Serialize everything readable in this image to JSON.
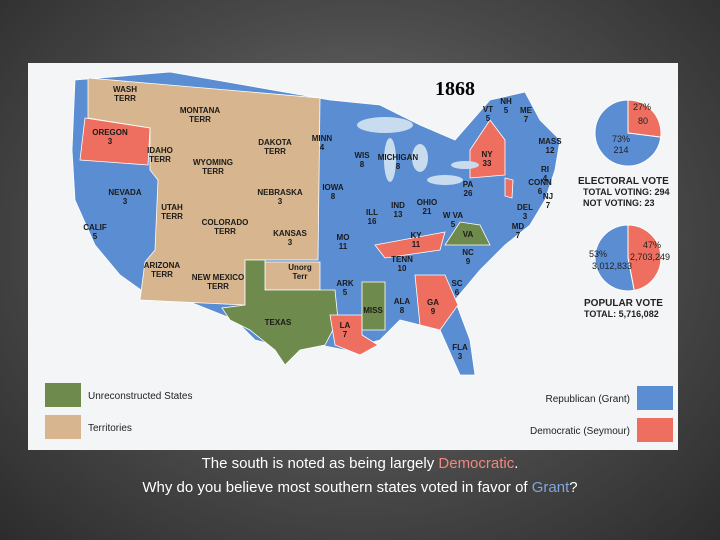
{
  "map": {
    "title": "1868",
    "states": [
      {
        "lines": [
          "WASH",
          "TERR"
        ]
      },
      {
        "lines": [
          "MONTANA",
          "TERR"
        ]
      },
      {
        "lines": [
          "IDAHO",
          "TERR"
        ]
      },
      {
        "lines": [
          "WYOMING",
          "TERR"
        ]
      },
      {
        "lines": [
          "DAKOTA",
          "TERR"
        ]
      },
      {
        "lines": [
          "UTAH",
          "TERR"
        ]
      },
      {
        "lines": [
          "COLORADO",
          "TERR"
        ]
      },
      {
        "lines": [
          "ARIZONA",
          "TERR"
        ]
      },
      {
        "lines": [
          "NEW MEXICO",
          "TERR"
        ]
      },
      {
        "lines": [
          "Unorg",
          "Terr"
        ]
      },
      {
        "lines": [
          "OREGON"
        ],
        "votes": 3
      },
      {
        "lines": [
          "NEVADA"
        ],
        "votes": 3
      },
      {
        "lines": [
          "CALIF"
        ],
        "votes": 5
      },
      {
        "lines": [
          "NEBRASKA"
        ],
        "votes": 3
      },
      {
        "lines": [
          "KANSAS"
        ],
        "votes": 3
      },
      {
        "lines": [
          "MINN"
        ],
        "votes": 4
      },
      {
        "lines": [
          "IOWA"
        ],
        "votes": 8
      },
      {
        "lines": [
          "MO"
        ],
        "votes": 11
      },
      {
        "lines": [
          "ARK"
        ],
        "votes": 5
      },
      {
        "lines": [
          "WIS"
        ],
        "votes": 8
      },
      {
        "lines": [
          "MICHIGAN"
        ],
        "votes": 8
      },
      {
        "lines": [
          "ILL"
        ],
        "votes": 16
      },
      {
        "lines": [
          "IND"
        ],
        "votes": 13
      },
      {
        "lines": [
          "OHIO"
        ],
        "votes": 21
      },
      {
        "lines": [
          "TENN"
        ],
        "votes": 10
      },
      {
        "lines": [
          "W VA"
        ],
        "votes": 5
      },
      {
        "lines": [
          "NC"
        ],
        "votes": 9
      },
      {
        "lines": [
          "SC"
        ],
        "votes": 6
      },
      {
        "lines": [
          "ALA"
        ],
        "votes": 8
      },
      {
        "lines": [
          "FLA"
        ],
        "votes": 3
      },
      {
        "lines": [
          "PA"
        ],
        "votes": 26
      },
      {
        "lines": [
          "VT"
        ],
        "votes": 5
      },
      {
        "lines": [
          "NH"
        ],
        "votes": 5
      },
      {
        "lines": [
          "ME"
        ],
        "votes": 7
      },
      {
        "lines": [
          "MASS"
        ],
        "votes": 12
      },
      {
        "lines": [
          "RI"
        ],
        "votes": 4
      },
      {
        "lines": [
          "CONN"
        ],
        "votes": 6
      },
      {
        "lines": [
          "NJ"
        ],
        "votes": 7
      },
      {
        "lines": [
          "DEL"
        ],
        "votes": 3
      },
      {
        "lines": [
          "MD"
        ],
        "votes": 7
      },
      {
        "lines": [
          "NY"
        ],
        "votes": 33
      },
      {
        "lines": [
          "KY"
        ],
        "votes": 11
      },
      {
        "lines": [
          "GA"
        ],
        "votes": 9
      },
      {
        "lines": [
          "LA"
        ],
        "votes": 7
      },
      {
        "lines": [
          "TEXAS"
        ]
      },
      {
        "lines": [
          "MISS"
        ]
      },
      {
        "lines": [
          "VA"
        ]
      }
    ],
    "legend": [
      "Unreconstructed States",
      "Territories",
      "Republican (Grant)",
      "Democratic (Seymour)"
    ],
    "legend_colors": [
      "#6e8a4c",
      "#d7b58e",
      "#5b8dd3",
      "#ee6f5f"
    ]
  },
  "electoral_vote": {
    "title": "ELECTORAL VOTE",
    "total": "TOTAL VOTING: 294",
    "not_voting": "NOT VOTING: 23",
    "values": [
      27,
      73
    ],
    "value_labels": [
      "27%",
      "73%"
    ],
    "votes": [
      80,
      214
    ],
    "colors": [
      "#ee6f5f",
      "#5b8dd3"
    ]
  },
  "popular_vote": {
    "title": "POPULAR VOTE",
    "total": "TOTAL: 5,716,082",
    "values": [
      47,
      53
    ],
    "value_labels": [
      "47%",
      "53%"
    ],
    "votes": [
      2703249,
      3012833
    ],
    "vote_labels": [
      "2,703,249",
      "3,012,833"
    ],
    "colors": [
      "#ee6f5f",
      "#5b8dd3"
    ]
  },
  "caption": {
    "line1": [
      "The south is noted as being largely ",
      "Democratic",
      "."
    ],
    "line2": [
      "Why do you believe most southern states voted in favor of ",
      "Grant",
      "?"
    ]
  }
}
